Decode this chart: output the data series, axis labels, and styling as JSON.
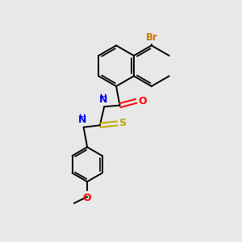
{
  "bg_color": "#e8e8e8",
  "bond_color": "#000000",
  "colors": {
    "Br": "#cc7700",
    "O": "#ff0000",
    "N": "#0000ee",
    "S": "#bbaa00",
    "C": "#000000"
  },
  "figsize": [
    3.0,
    3.0
  ],
  "dpi": 100,
  "lw": 1.4,
  "ring_r": 0.85,
  "benz_r": 0.72
}
